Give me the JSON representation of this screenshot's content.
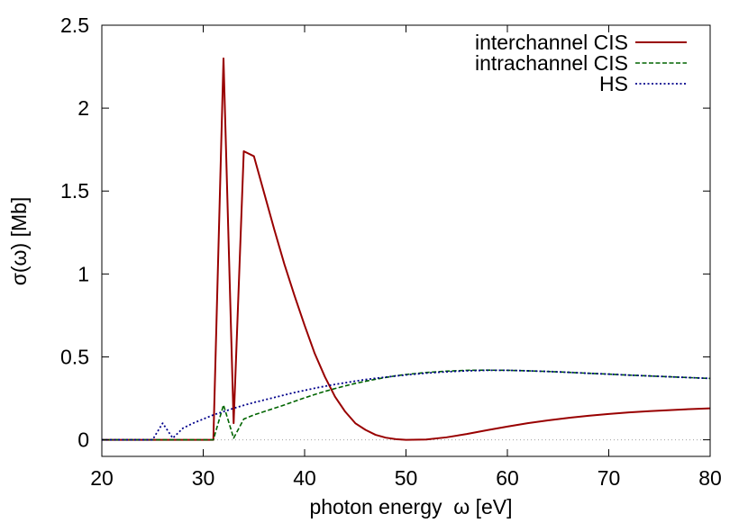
{
  "chart_data": {
    "type": "line",
    "xlabel": "photon energy  ω [eV]",
    "ylabel": "σ(ω) [Mb]",
    "xlim": [
      20,
      80
    ],
    "ylim": [
      -0.1,
      2.5
    ],
    "xticks": [
      20,
      30,
      40,
      50,
      60,
      70,
      80
    ],
    "xtick_labels": [
      "20",
      "30",
      "40",
      "50",
      "60",
      "70",
      "80"
    ],
    "yticks": [
      0,
      0.5,
      1,
      1.5,
      2,
      2.5
    ],
    "ytick_labels": [
      "0",
      "0.5",
      "1",
      "1.5",
      "2",
      "2.5"
    ],
    "grid": false,
    "zero_line": true,
    "legend_position": "top-right",
    "x": [
      20,
      25,
      26,
      27,
      28,
      29,
      30,
      31,
      32,
      33,
      34,
      35,
      36,
      37,
      38,
      39,
      40,
      41,
      42,
      43,
      44,
      45,
      46,
      47,
      48,
      49,
      50,
      52,
      54,
      56,
      58,
      60,
      62,
      64,
      66,
      68,
      70,
      72,
      74,
      76,
      78,
      80
    ],
    "series": [
      {
        "name": "interchannel CIS",
        "color": "#990000",
        "line_style": "solid",
        "values": [
          0,
          0,
          0,
          0,
          0,
          0,
          0,
          0,
          2.3,
          0.1,
          1.74,
          1.71,
          1.49,
          1.27,
          1.06,
          0.87,
          0.69,
          0.52,
          0.38,
          0.26,
          0.17,
          0.1,
          0.06,
          0.03,
          0.013,
          0.004,
          0.0,
          0.002,
          0.015,
          0.035,
          0.058,
          0.08,
          0.1,
          0.117,
          0.132,
          0.145,
          0.156,
          0.165,
          0.173,
          0.179,
          0.185,
          0.19
        ]
      },
      {
        "name": "intrachannel CIS",
        "color": "#006400",
        "line_style": "dashed",
        "values": [
          0,
          0,
          0,
          0,
          0,
          0,
          0,
          0,
          0.21,
          0.01,
          0.125,
          0.15,
          0.17,
          0.19,
          0.21,
          0.232,
          0.253,
          0.273,
          0.292,
          0.309,
          0.325,
          0.34,
          0.353,
          0.365,
          0.376,
          0.386,
          0.394,
          0.406,
          0.414,
          0.419,
          0.42,
          0.419,
          0.416,
          0.412,
          0.407,
          0.401,
          0.396,
          0.39,
          0.385,
          0.38,
          0.375,
          0.37
        ]
      },
      {
        "name": "HS",
        "color": "#00008b",
        "line_style": "dotted",
        "values": [
          0,
          0,
          0.1,
          0.01,
          0.07,
          0.1,
          0.125,
          0.15,
          0.17,
          0.19,
          0.208,
          0.225,
          0.24,
          0.255,
          0.27,
          0.285,
          0.298,
          0.311,
          0.323,
          0.334,
          0.344,
          0.354,
          0.363,
          0.371,
          0.378,
          0.385,
          0.391,
          0.402,
          0.41,
          0.416,
          0.419,
          0.419,
          0.416,
          0.412,
          0.407,
          0.401,
          0.396,
          0.39,
          0.385,
          0.38,
          0.375,
          0.37
        ]
      }
    ]
  },
  "colors": {
    "background": "#ffffff",
    "axis": "#000000",
    "zero_line": "#a0a0a0"
  }
}
